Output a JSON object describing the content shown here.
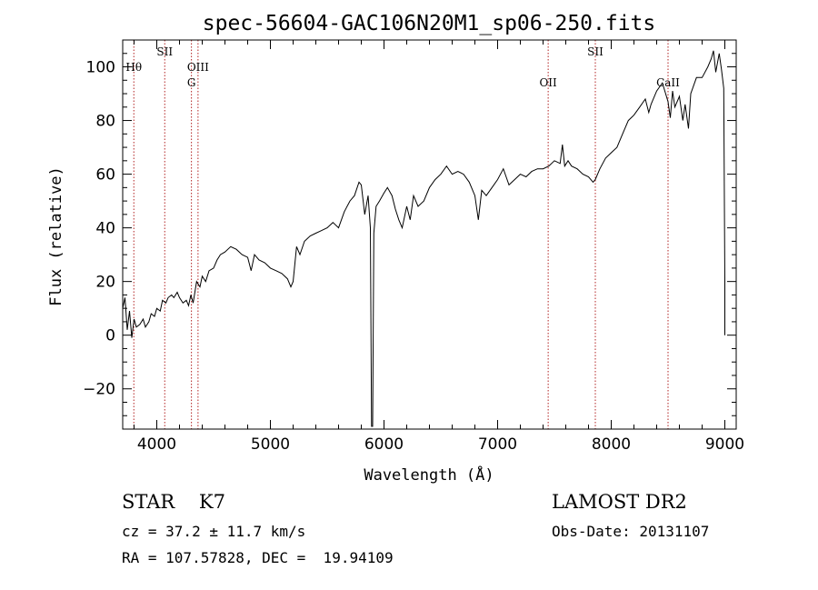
{
  "chart_data": {
    "type": "line",
    "title": "spec-56604-GAC106N20M1_sp06-250.fits",
    "xlabel": "Wavelength (Å)",
    "ylabel": "Flux (relative)",
    "xlim": [
      3700,
      9100
    ],
    "ylim": [
      -35,
      110
    ],
    "x_ticks": [
      4000,
      5000,
      6000,
      7000,
      8000,
      9000
    ],
    "y_ticks": [
      -20,
      0,
      20,
      40,
      60,
      80,
      100
    ],
    "grid": false,
    "series": [
      {
        "points": [
          [
            3700,
            10
          ],
          [
            3720,
            14
          ],
          [
            3740,
            2
          ],
          [
            3760,
            9
          ],
          [
            3780,
            -1
          ],
          [
            3800,
            6
          ],
          [
            3820,
            3
          ],
          [
            3850,
            4
          ],
          [
            3880,
            6
          ],
          [
            3900,
            3
          ],
          [
            3930,
            5
          ],
          [
            3950,
            8
          ],
          [
            3980,
            7
          ],
          [
            4000,
            10
          ],
          [
            4030,
            9
          ],
          [
            4050,
            13
          ],
          [
            4080,
            12
          ],
          [
            4100,
            14
          ],
          [
            4130,
            15
          ],
          [
            4150,
            14
          ],
          [
            4180,
            16
          ],
          [
            4200,
            14
          ],
          [
            4230,
            12
          ],
          [
            4260,
            13
          ],
          [
            4280,
            11
          ],
          [
            4300,
            15
          ],
          [
            4320,
            12
          ],
          [
            4350,
            20
          ],
          [
            4380,
            18
          ],
          [
            4400,
            22
          ],
          [
            4430,
            20
          ],
          [
            4460,
            24
          ],
          [
            4500,
            25
          ],
          [
            4530,
            28
          ],
          [
            4560,
            30
          ],
          [
            4600,
            31
          ],
          [
            4650,
            33
          ],
          [
            4700,
            32
          ],
          [
            4750,
            30
          ],
          [
            4800,
            29
          ],
          [
            4830,
            24
          ],
          [
            4860,
            30
          ],
          [
            4900,
            28
          ],
          [
            4950,
            27
          ],
          [
            5000,
            25
          ],
          [
            5050,
            24
          ],
          [
            5100,
            23
          ],
          [
            5150,
            21
          ],
          [
            5180,
            18
          ],
          [
            5200,
            20
          ],
          [
            5230,
            33
          ],
          [
            5260,
            30
          ],
          [
            5300,
            35
          ],
          [
            5350,
            37
          ],
          [
            5400,
            38
          ],
          [
            5450,
            39
          ],
          [
            5500,
            40
          ],
          [
            5550,
            42
          ],
          [
            5600,
            40
          ],
          [
            5650,
            46
          ],
          [
            5700,
            50
          ],
          [
            5740,
            52
          ],
          [
            5780,
            57
          ],
          [
            5800,
            56
          ],
          [
            5830,
            45
          ],
          [
            5860,
            52
          ],
          [
            5880,
            40
          ],
          [
            5890,
            -34
          ],
          [
            5900,
            -34
          ],
          [
            5910,
            38
          ],
          [
            5930,
            48
          ],
          [
            5960,
            50
          ],
          [
            6000,
            53
          ],
          [
            6030,
            55
          ],
          [
            6070,
            52
          ],
          [
            6100,
            47
          ],
          [
            6130,
            43
          ],
          [
            6160,
            40
          ],
          [
            6200,
            48
          ],
          [
            6230,
            43
          ],
          [
            6260,
            52
          ],
          [
            6300,
            48
          ],
          [
            6350,
            50
          ],
          [
            6400,
            55
          ],
          [
            6450,
            58
          ],
          [
            6500,
            60
          ],
          [
            6550,
            63
          ],
          [
            6600,
            60
          ],
          [
            6650,
            61
          ],
          [
            6700,
            60
          ],
          [
            6750,
            57
          ],
          [
            6800,
            52
          ],
          [
            6830,
            43
          ],
          [
            6860,
            54
          ],
          [
            6900,
            52
          ],
          [
            6950,
            55
          ],
          [
            7000,
            58
          ],
          [
            7050,
            62
          ],
          [
            7100,
            56
          ],
          [
            7150,
            58
          ],
          [
            7200,
            60
          ],
          [
            7250,
            59
          ],
          [
            7300,
            61
          ],
          [
            7350,
            62
          ],
          [
            7400,
            62
          ],
          [
            7450,
            63
          ],
          [
            7500,
            65
          ],
          [
            7550,
            64
          ],
          [
            7570,
            71
          ],
          [
            7590,
            63
          ],
          [
            7620,
            65
          ],
          [
            7650,
            63
          ],
          [
            7700,
            62
          ],
          [
            7750,
            60
          ],
          [
            7800,
            59
          ],
          [
            7840,
            57
          ],
          [
            7860,
            58
          ],
          [
            7900,
            62
          ],
          [
            7950,
            66
          ],
          [
            8000,
            68
          ],
          [
            8050,
            70
          ],
          [
            8100,
            75
          ],
          [
            8150,
            80
          ],
          [
            8200,
            82
          ],
          [
            8250,
            85
          ],
          [
            8300,
            88
          ],
          [
            8330,
            83
          ],
          [
            8350,
            86
          ],
          [
            8400,
            91
          ],
          [
            8450,
            94
          ],
          [
            8500,
            87
          ],
          [
            8520,
            81
          ],
          [
            8540,
            91
          ],
          [
            8560,
            85
          ],
          [
            8600,
            89
          ],
          [
            8630,
            80
          ],
          [
            8650,
            86
          ],
          [
            8680,
            77
          ],
          [
            8700,
            90
          ],
          [
            8750,
            96
          ],
          [
            8800,
            96
          ],
          [
            8850,
            100
          ],
          [
            8880,
            103
          ],
          [
            8900,
            106
          ],
          [
            8920,
            98
          ],
          [
            8950,
            105
          ],
          [
            8970,
            99
          ],
          [
            8990,
            92
          ],
          [
            9000,
            20
          ],
          [
            9000,
            0
          ]
        ]
      }
    ],
    "lines": [
      {
        "wavelength": 3798,
        "label": "Hθ",
        "row": 2
      },
      {
        "wavelength": 4070,
        "label": "SII",
        "row": 1
      },
      {
        "wavelength": 4305,
        "label": "G",
        "row": 3
      },
      {
        "wavelength": 4363,
        "label": "OIII",
        "row": 2
      },
      {
        "wavelength": 7445,
        "label": "OII",
        "row": 3
      },
      {
        "wavelength": 7860,
        "label": "SII",
        "row": 1
      },
      {
        "wavelength": 8500,
        "label": "CaII",
        "row": 3
      }
    ]
  },
  "info": {
    "class_text": "STAR    K7",
    "cz_text": "cz = 37.2 ± 11.7 km/s",
    "radec_text": "RA = 107.57828, DEC =  19.94109",
    "survey_text": "LAMOST DR2",
    "obsdate_text": "Obs-Date: 20131107"
  },
  "colors": {
    "spectrum": "#000000",
    "line_markers": "#b22222"
  }
}
